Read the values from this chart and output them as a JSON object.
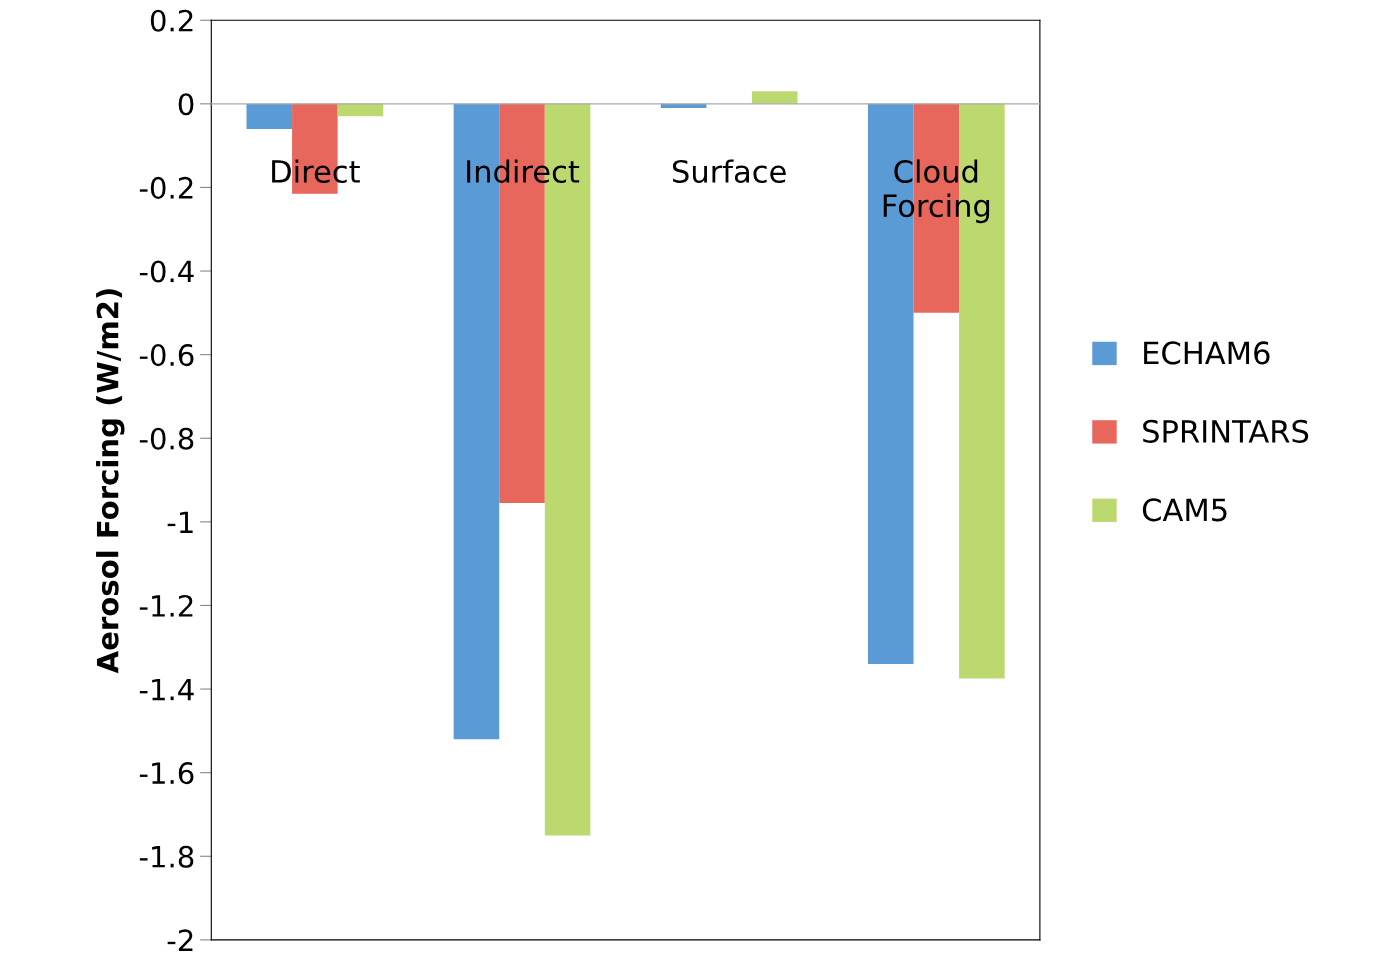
{
  "chart_data": {
    "type": "bar",
    "ylabel": "Aerosol Forcing (W/m2)",
    "categories": [
      "Direct",
      "Indirect",
      "Surface",
      "Cloud Forcing"
    ],
    "series": [
      {
        "name": "ECHAM6",
        "color": "#5b9bd5",
        "values": [
          -0.06,
          -1.52,
          -0.01,
          -1.34
        ]
      },
      {
        "name": "SPRINTARS",
        "color": "#e8675c",
        "values": [
          -0.215,
          -0.955,
          0,
          -0.5
        ]
      },
      {
        "name": "CAM5",
        "color": "#bcd96f",
        "values": [
          -0.03,
          -1.75,
          0.03,
          -1.375
        ]
      }
    ],
    "ylim": [
      -2,
      0.2
    ],
    "yticks": [
      0.2,
      0,
      -0.2,
      -0.4,
      -0.6,
      -0.8,
      -1,
      -1.2,
      -1.4,
      -1.6,
      -1.8,
      -2
    ],
    "grid": false,
    "legend": "right"
  }
}
